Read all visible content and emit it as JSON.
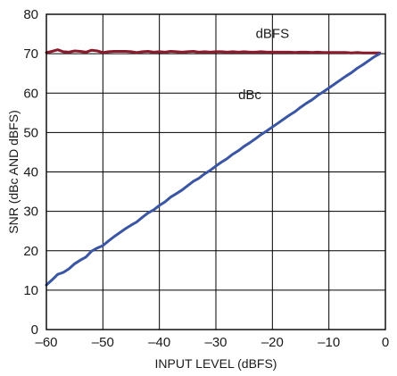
{
  "chart_data": {
    "type": "line",
    "xlabel": "INPUT LEVEL (dBFS)",
    "ylabel": "SNR (dBc AND dBFS)",
    "xlim": [
      -60,
      0
    ],
    "ylim": [
      0,
      80
    ],
    "x_ticks": [
      -60,
      -50,
      -40,
      -30,
      -20,
      -10,
      0
    ],
    "x_tick_labels": [
      "–60",
      "–50",
      "–40",
      "–30",
      "–20",
      "–10",
      "0"
    ],
    "y_ticks": [
      0,
      10,
      20,
      30,
      40,
      50,
      60,
      70,
      80
    ],
    "y_tick_labels": [
      "0",
      "10",
      "20",
      "30",
      "40",
      "50",
      "60",
      "70",
      "80"
    ],
    "grid": true,
    "series": [
      {
        "name": "dBFS",
        "color": "#8b1a2b",
        "x": [
          -60,
          -59,
          -58,
          -57,
          -56,
          -55,
          -54,
          -53,
          -52,
          -51,
          -50,
          -49,
          -48,
          -47,
          -46,
          -45,
          -44,
          -43,
          -42,
          -41,
          -40,
          -39,
          -38,
          -37,
          -36,
          -35,
          -34,
          -33,
          -32,
          -31,
          -30,
          -29,
          -28,
          -27,
          -26,
          -25,
          -24,
          -23,
          -22,
          -21,
          -20,
          -19,
          -18,
          -17,
          -16,
          -15,
          -14,
          -13,
          -12,
          -11,
          -10,
          -9,
          -8,
          -7,
          -6,
          -5,
          -4,
          -3,
          -2,
          -1
        ],
        "y": [
          70.3,
          70.6,
          71.0,
          70.5,
          70.4,
          70.7,
          70.6,
          70.4,
          70.9,
          70.7,
          70.3,
          70.5,
          70.6,
          70.6,
          70.6,
          70.5,
          70.3,
          70.5,
          70.6,
          70.4,
          70.5,
          70.4,
          70.6,
          70.5,
          70.4,
          70.5,
          70.6,
          70.4,
          70.5,
          70.4,
          70.5,
          70.5,
          70.4,
          70.5,
          70.4,
          70.5,
          70.4,
          70.4,
          70.5,
          70.4,
          70.4,
          70.4,
          70.4,
          70.4,
          70.3,
          70.4,
          70.4,
          70.3,
          70.4,
          70.3,
          70.3,
          70.3,
          70.3,
          70.3,
          70.2,
          70.3,
          70.2,
          70.2,
          70.2,
          70.2
        ]
      },
      {
        "name": "dBc",
        "color": "#3a55a4",
        "x": [
          -60,
          -59,
          -58,
          -57,
          -56,
          -55,
          -54,
          -53,
          -52,
          -51,
          -50,
          -49,
          -48,
          -47,
          -46,
          -45,
          -44,
          -43,
          -42,
          -41,
          -40,
          -39,
          -38,
          -37,
          -36,
          -35,
          -34,
          -33,
          -32,
          -31,
          -30,
          -29,
          -28,
          -27,
          -26,
          -25,
          -24,
          -23,
          -22,
          -21,
          -20,
          -19,
          -18,
          -17,
          -16,
          -15,
          -14,
          -13,
          -12,
          -11,
          -10,
          -9,
          -8,
          -7,
          -6,
          -5,
          -4,
          -3,
          -2,
          -1
        ],
        "y": [
          11.3,
          12.6,
          14.0,
          14.5,
          15.4,
          16.7,
          17.6,
          18.4,
          19.9,
          20.7,
          21.3,
          22.5,
          23.6,
          24.6,
          25.6,
          26.5,
          27.3,
          28.5,
          29.6,
          30.4,
          31.5,
          32.4,
          33.6,
          34.5,
          35.4,
          36.5,
          37.6,
          38.4,
          39.5,
          40.4,
          41.5,
          42.5,
          43.4,
          44.5,
          45.4,
          46.5,
          47.4,
          48.4,
          49.5,
          50.4,
          51.4,
          52.4,
          53.4,
          54.4,
          55.3,
          56.4,
          57.4,
          58.3,
          59.4,
          60.3,
          61.3,
          62.3,
          63.3,
          64.3,
          65.2,
          66.3,
          67.2,
          68.2,
          69.2,
          70.0
        ]
      }
    ],
    "annotations": [
      {
        "text": "dBFS",
        "x": -20,
        "y": 74
      },
      {
        "text": "dBc",
        "x": -24,
        "y": 58.5
      }
    ]
  }
}
